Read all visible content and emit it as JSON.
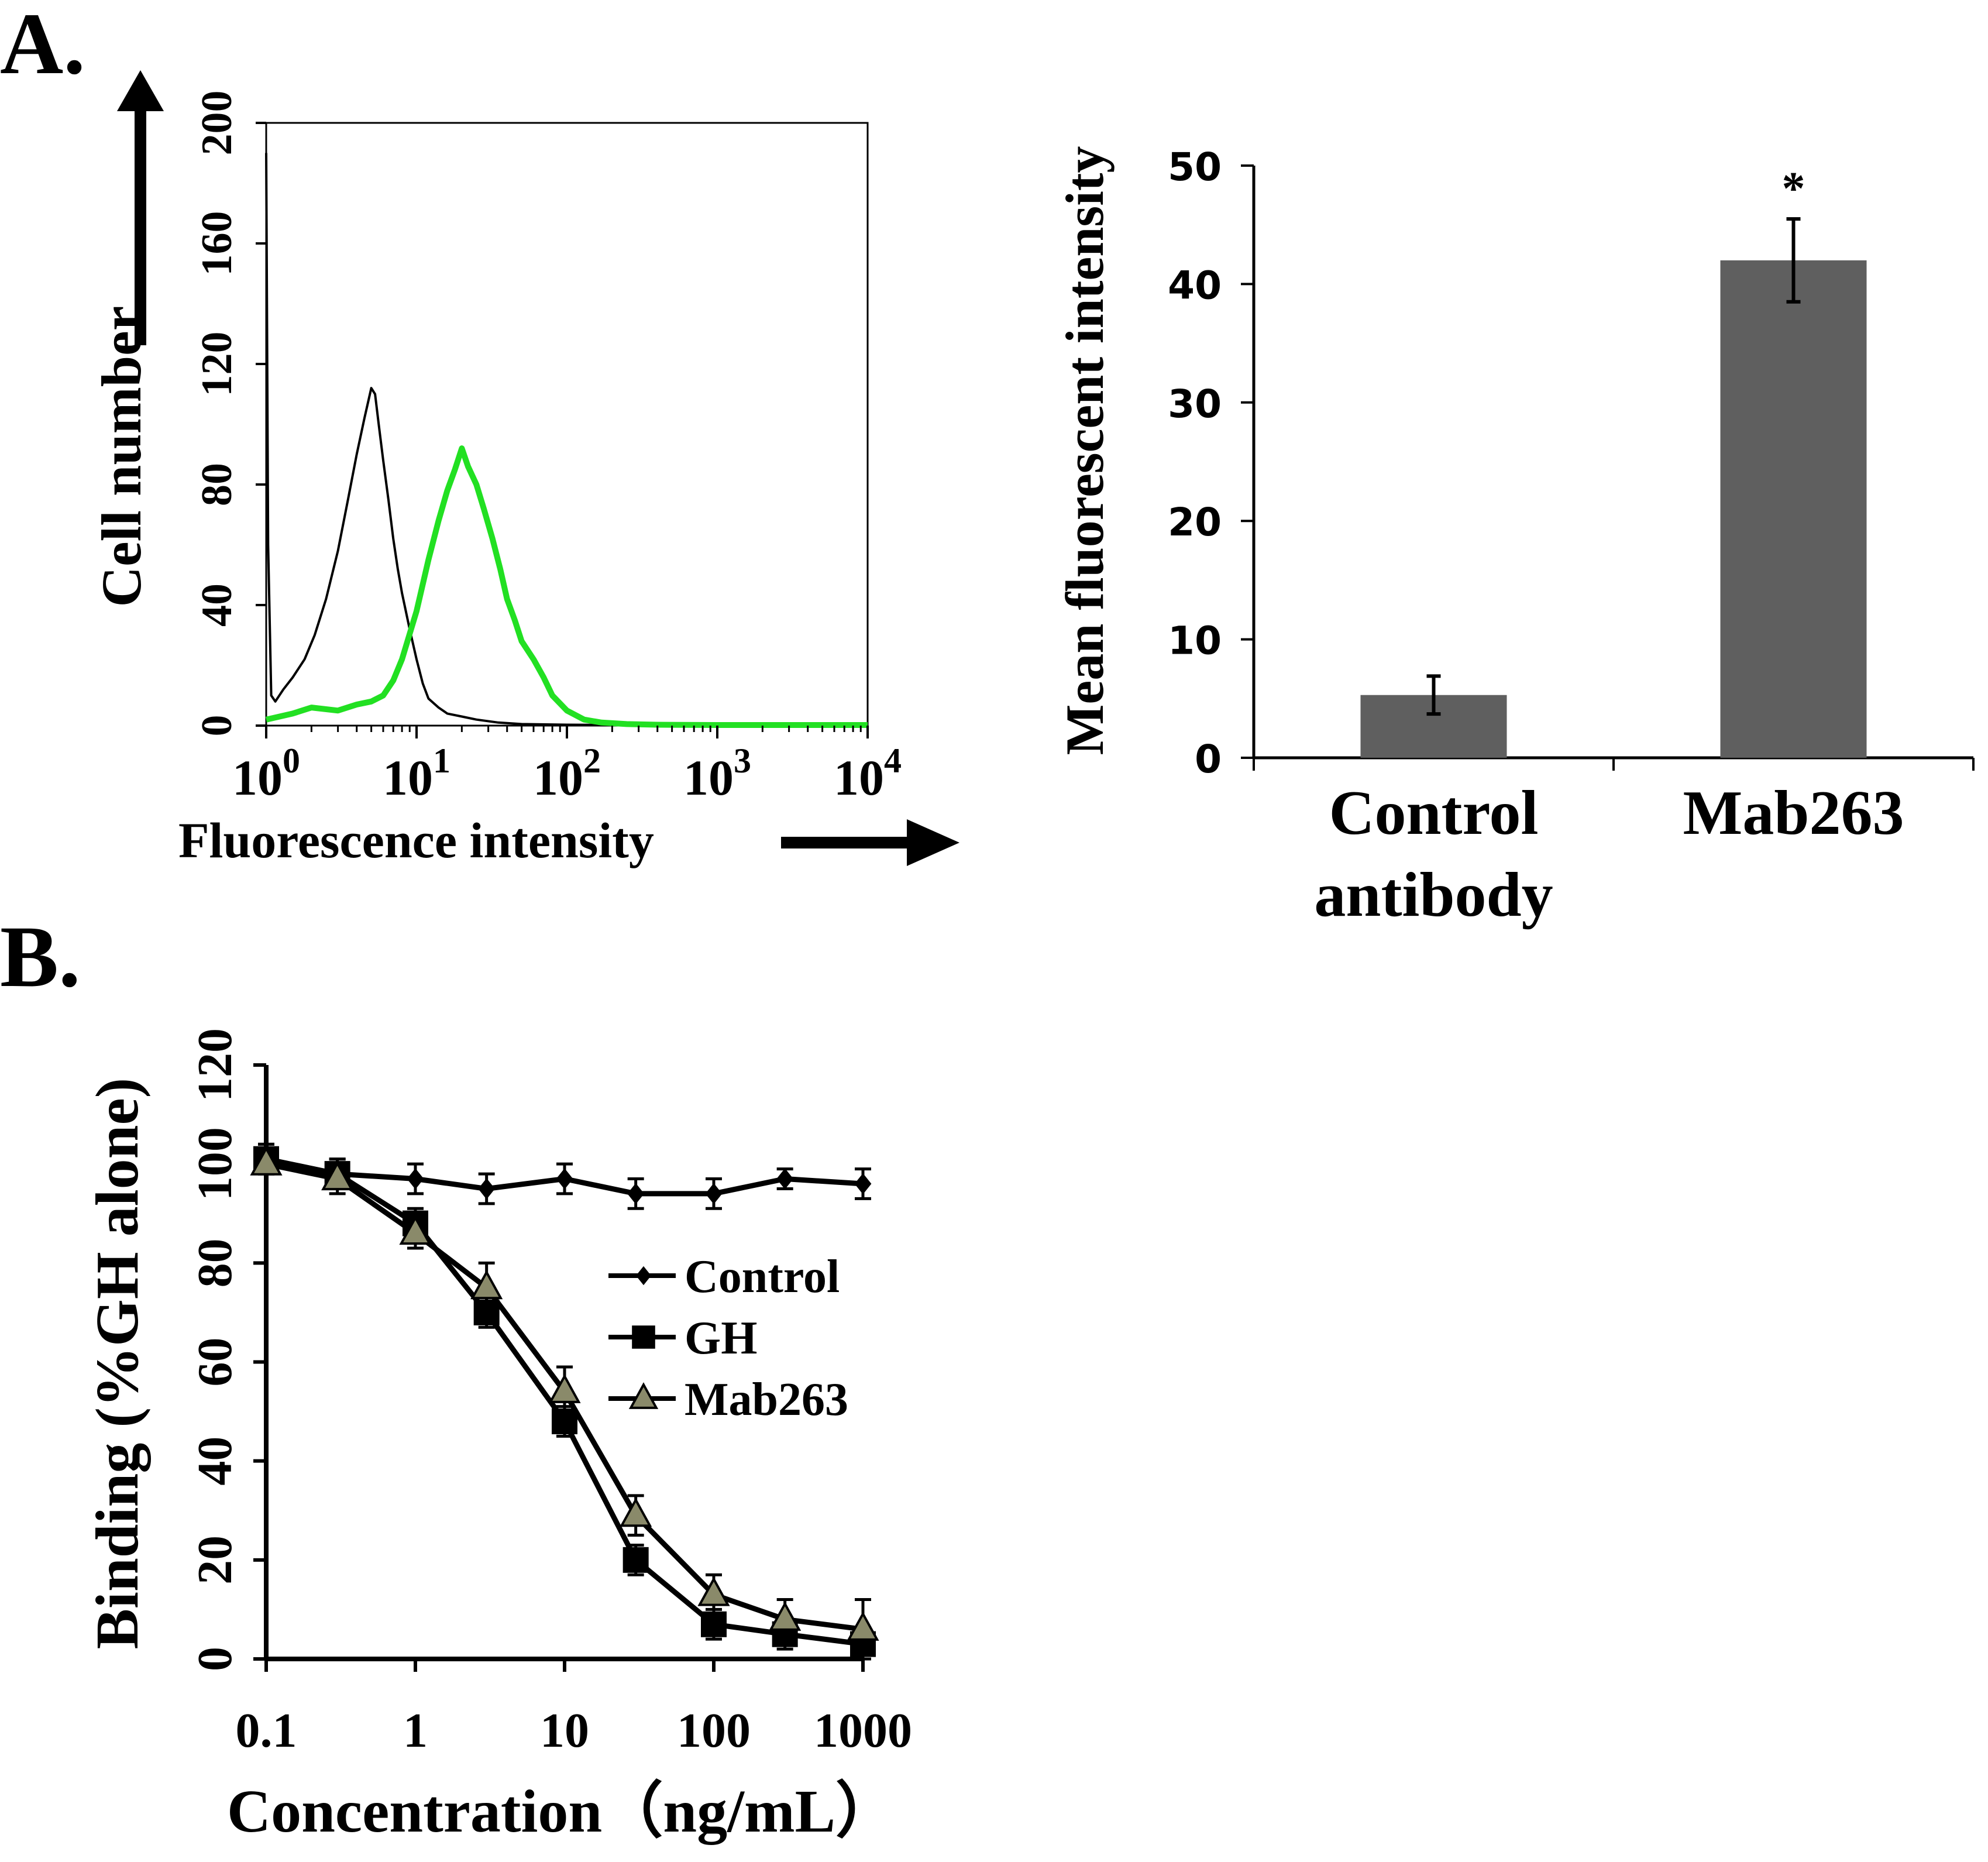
{
  "chart_data": [
    {
      "id": "A_histogram",
      "panel_label": "A.",
      "type": "area",
      "xlabel": "Fluorescence intensity",
      "ylabel": "Cell number",
      "x_scale": "log",
      "xlim": [
        1,
        10000
      ],
      "ylim": [
        0,
        200
      ],
      "x_ticks": [
        {
          "base": "10",
          "exp": "0"
        },
        {
          "base": "10",
          "exp": "1"
        },
        {
          "base": "10",
          "exp": "2"
        },
        {
          "base": "10",
          "exp": "3"
        },
        {
          "base": "10",
          "exp": "4"
        }
      ],
      "y_ticks": [
        "0",
        "40",
        "80",
        "120",
        "160",
        "200"
      ],
      "series": [
        {
          "name": "Control antibody",
          "color": "#000000",
          "x": [
            1,
            1.03,
            1.08,
            1.15,
            1.3,
            1.5,
            1.8,
            2.1,
            2.5,
            3.0,
            3.5,
            4.0,
            4.5,
            5.0,
            5.3,
            5.6,
            6.0,
            6.5,
            7.0,
            7.5,
            8.0,
            9.0,
            10,
            11,
            12,
            14,
            16,
            20,
            25,
            35,
            50,
            100,
            1000,
            10000
          ],
          "y": [
            190,
            60,
            10,
            8,
            12,
            16,
            22,
            30,
            42,
            58,
            75,
            90,
            102,
            112,
            110,
            100,
            88,
            75,
            62,
            52,
            44,
            32,
            22,
            14,
            9,
            6,
            4,
            3,
            2,
            1,
            0.5,
            0.3,
            0,
            0
          ]
        },
        {
          "name": "Mab263",
          "color": "#22e022",
          "x": [
            1,
            1.5,
            2,
            3,
            4,
            5,
            6,
            7,
            8,
            10,
            12,
            14,
            16,
            18,
            20,
            22,
            25,
            28,
            32,
            36,
            40,
            45,
            50,
            60,
            70,
            80,
            100,
            130,
            170,
            250,
            400,
            1000,
            10000
          ],
          "y": [
            2,
            4,
            6,
            5,
            7,
            8,
            10,
            15,
            22,
            38,
            55,
            68,
            78,
            85,
            92,
            86,
            80,
            72,
            62,
            52,
            42,
            35,
            28,
            22,
            16,
            10,
            5,
            2,
            1,
            0.5,
            0.3,
            0.2,
            0.2
          ]
        }
      ]
    },
    {
      "id": "A_bar",
      "type": "bar",
      "ylabel": "Mean fluorescent intensity",
      "ylim": [
        0,
        50
      ],
      "y_ticks": [
        "0",
        "10",
        "20",
        "30",
        "40",
        "50"
      ],
      "categories": [
        "Control antibody",
        "Mab263"
      ],
      "category_labels": [
        [
          "Control",
          "antibody"
        ],
        [
          "Mab263"
        ]
      ],
      "values": [
        5.3,
        42
      ],
      "errors": [
        1.6,
        3.5
      ],
      "annotations": [
        "",
        "*"
      ],
      "bar_color": "#5f5f5f"
    },
    {
      "id": "B_line",
      "panel_label": "B.",
      "type": "line",
      "xlabel": "Concentration（ng/mL）",
      "ylabel": "Binding (%GH alone)",
      "x_scale": "log",
      "xlim": [
        0.1,
        1000
      ],
      "ylim": [
        0,
        120
      ],
      "x_ticks": [
        "0.1",
        "1",
        "10",
        "100",
        "1000"
      ],
      "y_ticks": [
        "0",
        "20",
        "40",
        "60",
        "80",
        "100",
        "120"
      ],
      "x": [
        0.1,
        0.3,
        1,
        3,
        10,
        30,
        100,
        300,
        1000
      ],
      "series": [
        {
          "name": "Control",
          "marker": "diamond",
          "values": [
            101,
            98,
            97,
            95,
            97,
            94,
            94,
            97,
            96
          ],
          "errors": [
            3,
            3,
            3,
            3,
            3,
            3,
            3,
            2,
            3
          ]
        },
        {
          "name": "GH",
          "marker": "square",
          "values": [
            101,
            98,
            88,
            70,
            48,
            20,
            7,
            5,
            3
          ],
          "errors": [
            3,
            3,
            3,
            3,
            3,
            3,
            3,
            3,
            3
          ]
        },
        {
          "name": "Mab263",
          "marker": "triangle",
          "values": [
            100,
            97,
            86,
            75,
            54,
            29,
            13,
            8,
            6
          ],
          "errors": [
            2,
            3,
            3,
            5,
            5,
            4,
            4,
            4,
            6
          ]
        }
      ]
    }
  ]
}
